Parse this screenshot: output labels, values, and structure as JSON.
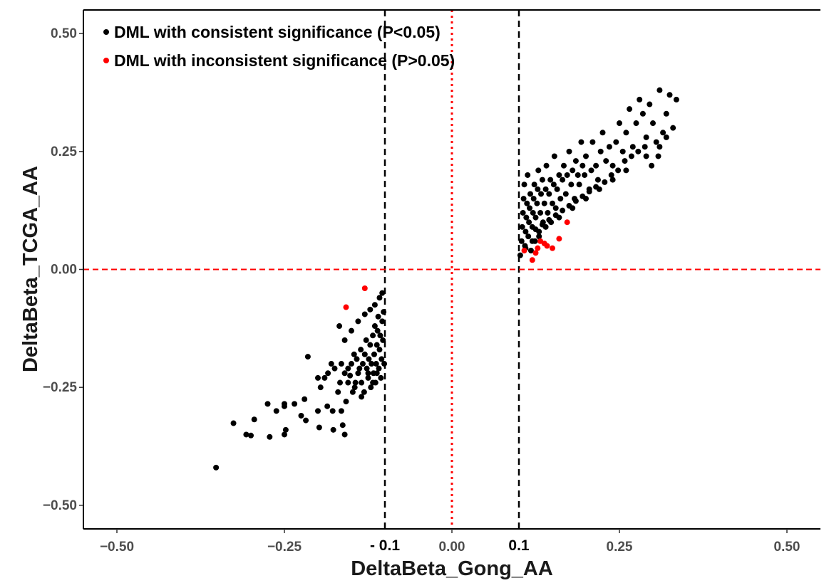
{
  "chart_data": {
    "type": "scatter",
    "title": "",
    "xlabel": "DeltaBeta_Gong_AA",
    "ylabel": "DeltaBeta_TCGA_AA",
    "xlim": [
      -0.55,
      0.55
    ],
    "ylim": [
      -0.55,
      0.55
    ],
    "x_ticks": [
      -0.5,
      -0.25,
      0.0,
      0.25,
      0.5
    ],
    "x_tick_labels": [
      "−0.50",
      "−0.25",
      "0.00",
      "0.25",
      "0.50"
    ],
    "y_ticks": [
      0.5,
      0.25,
      0.0,
      -0.25,
      -0.5
    ],
    "y_tick_labels": [
      "0.50",
      "0.25",
      "0.00",
      "−0.25",
      "−0.50"
    ],
    "reference_lines": {
      "vertical_black_dashed": [
        -0.1,
        0.1
      ],
      "vertical_red_dotted": [
        0.0
      ],
      "horizontal_red_dashed": [
        0.0
      ]
    },
    "threshold_labels": [
      {
        "x": -0.1,
        "text": "- 0.1"
      },
      {
        "x": 0.1,
        "text": "0.1"
      }
    ],
    "legend": {
      "position": "top-left",
      "entries": [
        {
          "label": "DML with consistent significance (P<0.05)",
          "color": "#000000"
        },
        {
          "label": "DML with inconsistent significance (P>0.05)",
          "color": "#ff0000"
        }
      ]
    },
    "grid": false,
    "series": [
      {
        "name": "DML with consistent significance (P<0.05)",
        "color": "#000000",
        "points": [
          [
            -0.352,
            -0.42
          ],
          [
            -0.326,
            -0.326
          ],
          [
            -0.307,
            -0.35
          ],
          [
            -0.3,
            -0.352
          ],
          [
            -0.295,
            -0.318
          ],
          [
            -0.275,
            -0.285
          ],
          [
            -0.272,
            -0.355
          ],
          [
            -0.262,
            -0.3
          ],
          [
            -0.25,
            -0.285
          ],
          [
            -0.25,
            -0.29
          ],
          [
            -0.248,
            -0.34
          ],
          [
            -0.25,
            -0.35
          ],
          [
            -0.235,
            -0.285
          ],
          [
            -0.225,
            -0.31
          ],
          [
            -0.22,
            -0.275
          ],
          [
            -0.218,
            -0.32
          ],
          [
            -0.215,
            -0.185
          ],
          [
            -0.2,
            -0.3
          ],
          [
            -0.198,
            -0.335
          ],
          [
            -0.196,
            -0.25
          ],
          [
            -0.19,
            -0.23
          ],
          [
            -0.186,
            -0.29
          ],
          [
            -0.18,
            -0.2
          ],
          [
            -0.178,
            -0.3
          ],
          [
            -0.177,
            -0.34
          ],
          [
            -0.17,
            -0.26
          ],
          [
            -0.167,
            -0.24
          ],
          [
            -0.165,
            -0.3
          ],
          [
            -0.163,
            -0.33
          ],
          [
            -0.16,
            -0.35
          ],
          [
            -0.158,
            -0.28
          ],
          [
            -0.155,
            -0.21
          ],
          [
            -0.152,
            -0.225
          ],
          [
            -0.15,
            -0.2
          ],
          [
            -0.148,
            -0.26
          ],
          [
            -0.146,
            -0.18
          ],
          [
            -0.144,
            -0.24
          ],
          [
            -0.142,
            -0.19
          ],
          [
            -0.14,
            -0.22
          ],
          [
            -0.138,
            -0.21
          ],
          [
            -0.136,
            -0.17
          ],
          [
            -0.135,
            -0.24
          ],
          [
            -0.133,
            -0.2
          ],
          [
            -0.131,
            -0.26
          ],
          [
            -0.13,
            -0.18
          ],
          [
            -0.128,
            -0.15
          ],
          [
            -0.127,
            -0.21
          ],
          [
            -0.125,
            -0.23
          ],
          [
            -0.124,
            -0.19
          ],
          [
            -0.122,
            -0.16
          ],
          [
            -0.121,
            -0.25
          ],
          [
            -0.12,
            -0.2
          ],
          [
            -0.118,
            -0.14
          ],
          [
            -0.117,
            -0.22
          ],
          [
            -0.116,
            -0.18
          ],
          [
            -0.115,
            -0.12
          ],
          [
            -0.114,
            -0.24
          ],
          [
            -0.113,
            -0.2
          ],
          [
            -0.112,
            -0.16
          ],
          [
            -0.111,
            -0.13
          ],
          [
            -0.11,
            -0.1
          ],
          [
            -0.109,
            -0.21
          ],
          [
            -0.108,
            -0.17
          ],
          [
            -0.107,
            -0.14
          ],
          [
            -0.106,
            -0.23
          ],
          [
            -0.105,
            -0.19
          ],
          [
            -0.104,
            -0.11
          ],
          [
            -0.103,
            -0.15
          ],
          [
            -0.102,
            -0.09
          ],
          [
            -0.101,
            -0.2
          ],
          [
            -0.168,
            -0.12
          ],
          [
            -0.16,
            -0.15
          ],
          [
            -0.15,
            -0.13
          ],
          [
            -0.14,
            -0.11
          ],
          [
            -0.13,
            -0.095
          ],
          [
            -0.122,
            -0.085
          ],
          [
            -0.115,
            -0.075
          ],
          [
            -0.108,
            -0.06
          ],
          [
            -0.104,
            -0.05
          ],
          [
            -0.2,
            -0.23
          ],
          [
            -0.185,
            -0.22
          ],
          [
            -0.175,
            -0.21
          ],
          [
            -0.165,
            -0.2
          ],
          [
            -0.16,
            -0.22
          ],
          [
            -0.155,
            -0.24
          ],
          [
            -0.145,
            -0.25
          ],
          [
            -0.135,
            -0.27
          ],
          [
            -0.125,
            -0.22
          ],
          [
            -0.118,
            -0.24
          ],
          [
            -0.112,
            -0.22
          ],
          [
            0.102,
            0.03
          ],
          [
            0.104,
            0.06
          ],
          [
            0.105,
            0.09
          ],
          [
            0.106,
            0.12
          ],
          [
            0.107,
            0.15
          ],
          [
            0.108,
            0.18
          ],
          [
            0.109,
            0.05
          ],
          [
            0.11,
            0.08
          ],
          [
            0.111,
            0.11
          ],
          [
            0.112,
            0.14
          ],
          [
            0.113,
            0.2
          ],
          [
            0.114,
            0.07
          ],
          [
            0.115,
            0.1
          ],
          [
            0.116,
            0.13
          ],
          [
            0.117,
            0.16
          ],
          [
            0.118,
            0.04
          ],
          [
            0.12,
            0.09
          ],
          [
            0.121,
            0.12
          ],
          [
            0.122,
            0.15
          ],
          [
            0.123,
            0.18
          ],
          [
            0.124,
            0.06
          ],
          [
            0.125,
            0.11
          ],
          [
            0.127,
            0.14
          ],
          [
            0.128,
            0.17
          ],
          [
            0.129,
            0.21
          ],
          [
            0.13,
            0.08
          ],
          [
            0.132,
            0.12
          ],
          [
            0.133,
            0.16
          ],
          [
            0.135,
            0.19
          ],
          [
            0.136,
            0.1
          ],
          [
            0.138,
            0.14
          ],
          [
            0.14,
            0.17
          ],
          [
            0.141,
            0.22
          ],
          [
            0.143,
            0.12
          ],
          [
            0.145,
            0.16
          ],
          [
            0.147,
            0.19
          ],
          [
            0.148,
            0.1
          ],
          [
            0.15,
            0.14
          ],
          [
            0.152,
            0.18
          ],
          [
            0.153,
            0.24
          ],
          [
            0.155,
            0.13
          ],
          [
            0.157,
            0.17
          ],
          [
            0.16,
            0.2
          ],
          [
            0.162,
            0.15
          ],
          [
            0.165,
            0.19
          ],
          [
            0.167,
            0.22
          ],
          [
            0.17,
            0.16
          ],
          [
            0.172,
            0.2
          ],
          [
            0.175,
            0.25
          ],
          [
            0.178,
            0.18
          ],
          [
            0.18,
            0.21
          ],
          [
            0.183,
            0.15
          ],
          [
            0.185,
            0.23
          ],
          [
            0.188,
            0.2
          ],
          [
            0.19,
            0.18
          ],
          [
            0.193,
            0.27
          ],
          [
            0.195,
            0.22
          ],
          [
            0.198,
            0.2
          ],
          [
            0.2,
            0.24
          ],
          [
            0.205,
            0.17
          ],
          [
            0.208,
            0.21
          ],
          [
            0.21,
            0.27
          ],
          [
            0.215,
            0.22
          ],
          [
            0.218,
            0.19
          ],
          [
            0.222,
            0.25
          ],
          [
            0.225,
            0.29
          ],
          [
            0.23,
            0.23
          ],
          [
            0.235,
            0.26
          ],
          [
            0.24,
            0.22
          ],
          [
            0.245,
            0.27
          ],
          [
            0.25,
            0.31
          ],
          [
            0.255,
            0.25
          ],
          [
            0.26,
            0.29
          ],
          [
            0.265,
            0.34
          ],
          [
            0.27,
            0.26
          ],
          [
            0.275,
            0.31
          ],
          [
            0.28,
            0.36
          ],
          [
            0.285,
            0.33
          ],
          [
            0.29,
            0.28
          ],
          [
            0.295,
            0.35
          ],
          [
            0.3,
            0.31
          ],
          [
            0.305,
            0.27
          ],
          [
            0.31,
            0.38
          ],
          [
            0.315,
            0.29
          ],
          [
            0.32,
            0.33
          ],
          [
            0.325,
            0.37
          ],
          [
            0.33,
            0.3
          ],
          [
            0.335,
            0.36
          ],
          [
            0.26,
            0.21
          ],
          [
            0.29,
            0.24
          ],
          [
            0.31,
            0.26
          ],
          [
            0.32,
            0.28
          ],
          [
            0.24,
            0.19
          ],
          [
            0.22,
            0.17
          ],
          [
            0.2,
            0.15
          ],
          [
            0.18,
            0.13
          ],
          [
            0.16,
            0.11
          ],
          [
            0.14,
            0.09
          ],
          [
            0.13,
            0.07
          ],
          [
            0.12,
            0.06
          ],
          [
            0.11,
            0.045
          ],
          [
            0.125,
            0.085
          ],
          [
            0.135,
            0.095
          ],
          [
            0.145,
            0.105
          ],
          [
            0.155,
            0.115
          ],
          [
            0.165,
            0.125
          ],
          [
            0.175,
            0.135
          ],
          [
            0.185,
            0.145
          ],
          [
            0.195,
            0.155
          ],
          [
            0.205,
            0.165
          ],
          [
            0.215,
            0.175
          ],
          [
            0.228,
            0.185
          ],
          [
            0.238,
            0.2
          ],
          [
            0.248,
            0.21
          ],
          [
            0.258,
            0.23
          ],
          [
            0.268,
            0.24
          ],
          [
            0.278,
            0.25
          ],
          [
            0.288,
            0.26
          ],
          [
            0.298,
            0.22
          ],
          [
            0.308,
            0.24
          ]
        ]
      },
      {
        "name": "DML with inconsistent significance (P>0.05)",
        "color": "#ff0000",
        "points": [
          [
            -0.13,
            -0.04
          ],
          [
            -0.158,
            -0.08
          ],
          [
            0.108,
            0.04
          ],
          [
            0.12,
            0.02
          ],
          [
            0.125,
            0.035
          ],
          [
            0.128,
            0.045
          ],
          [
            0.132,
            0.06
          ],
          [
            0.138,
            0.055
          ],
          [
            0.142,
            0.05
          ],
          [
            0.15,
            0.045
          ],
          [
            0.16,
            0.065
          ],
          [
            0.172,
            0.1
          ]
        ]
      }
    ]
  }
}
